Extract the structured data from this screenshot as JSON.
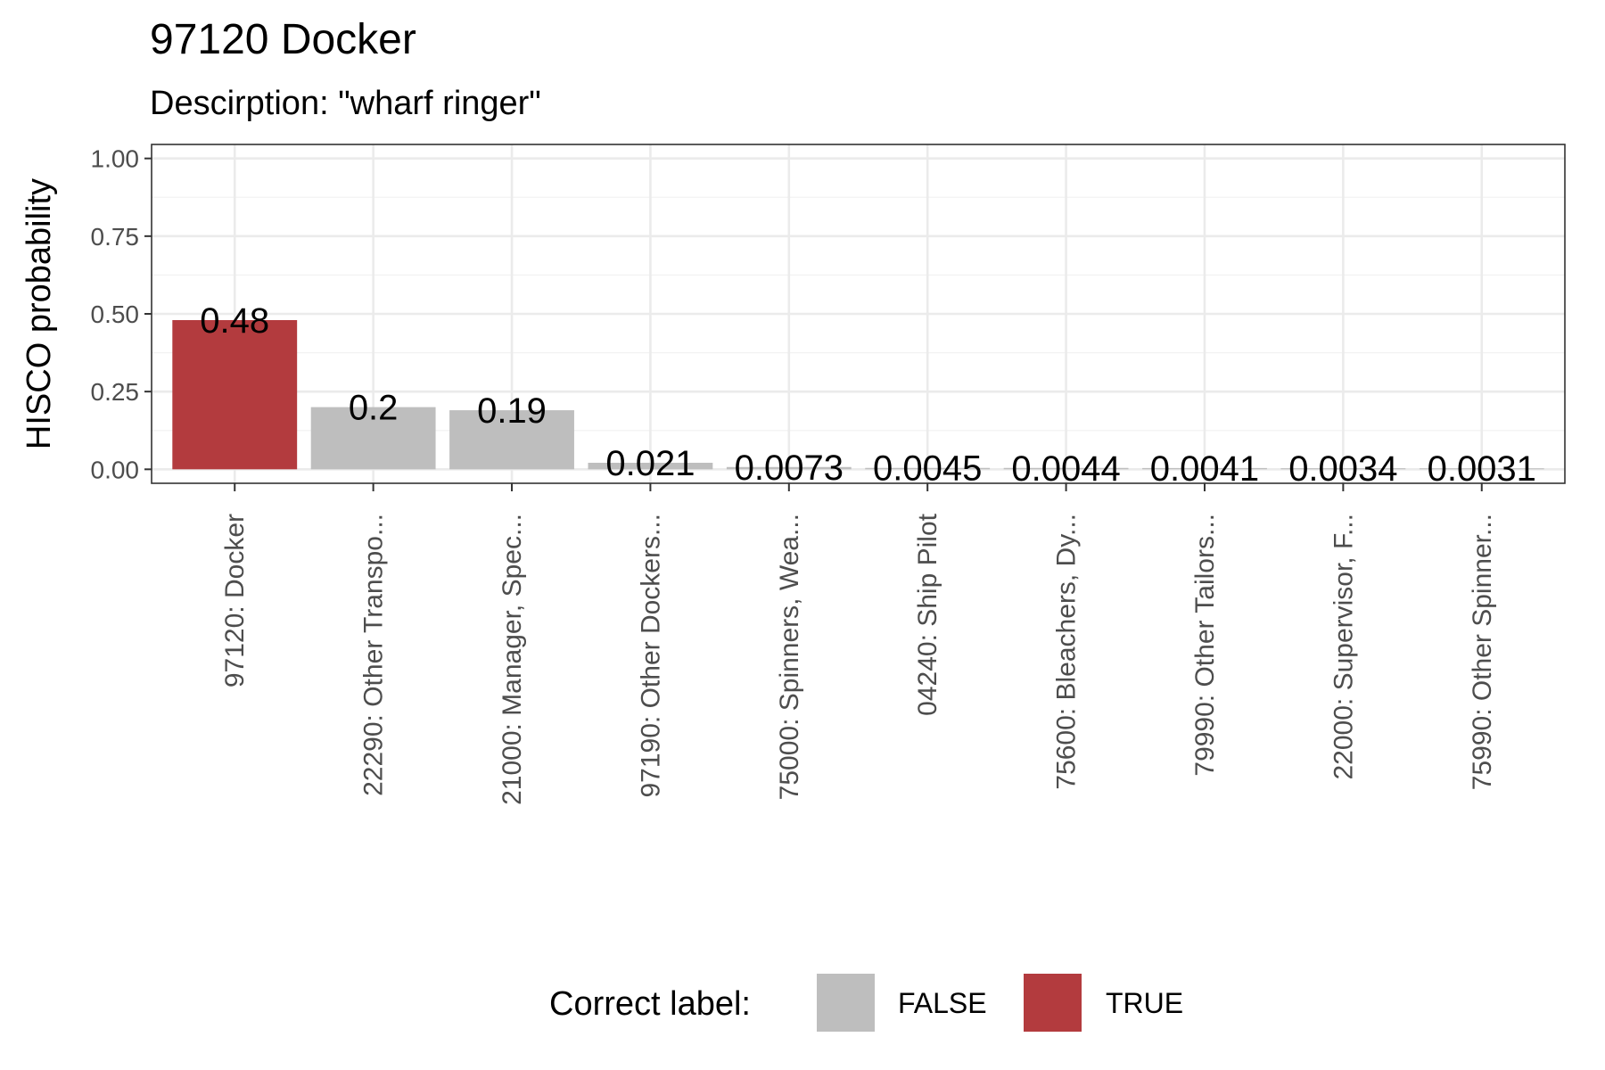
{
  "chart_data": {
    "type": "bar",
    "title": "97120 Docker",
    "subtitle": "Descirption: \"wharf ringer\"",
    "xlabel": "",
    "ylabel": "HISCO probability",
    "ylim": [
      0,
      1.0
    ],
    "yticks": [
      "0.00",
      "0.25",
      "0.50",
      "0.75",
      "1.00"
    ],
    "ytick_values": [
      0,
      0.25,
      0.5,
      0.75,
      1.0
    ],
    "grid": true,
    "categories": [
      "97120: Docker",
      "22290: Other Transpo...",
      "21000: Manager, Spec...",
      "97190: Other Dockers...",
      "75000: Spinners, Wea...",
      "04240: Ship Pilot",
      "75600: Bleachers, Dy...",
      "79990: Other Tailors...",
      "22000: Supervisor, F...",
      "75990: Other Spinner..."
    ],
    "values": [
      0.48,
      0.2,
      0.19,
      0.021,
      0.0073,
      0.0045,
      0.0044,
      0.0041,
      0.0034,
      0.0031
    ],
    "value_labels": [
      "0.48",
      "0.2",
      "0.19",
      "0.021",
      "0.0073",
      "0.0045",
      "0.0044",
      "0.0041",
      "0.0034",
      "0.0031"
    ],
    "correct": [
      true,
      false,
      false,
      false,
      false,
      false,
      false,
      false,
      false,
      false
    ],
    "legend": {
      "title": "Correct label:",
      "placement": "bottom",
      "entries": [
        {
          "label": "FALSE",
          "color": "#bebebe"
        },
        {
          "label": "TRUE",
          "color": "#b33b3e"
        }
      ]
    },
    "colors": {
      "true": "#b33b3e",
      "false": "#bebebe"
    }
  }
}
